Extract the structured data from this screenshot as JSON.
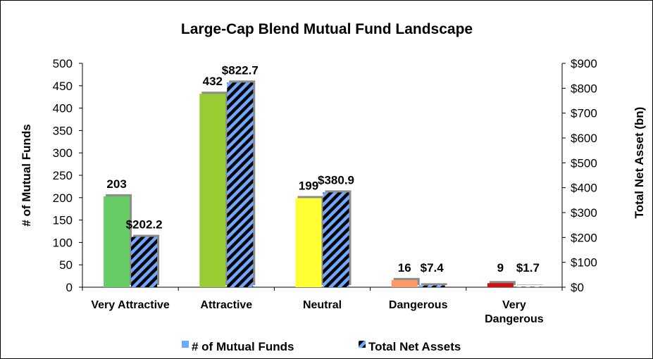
{
  "chart_data": {
    "type": "bar",
    "title": "Large-Cap Blend Mutual Fund Landscape",
    "categories": [
      "Very Attractive",
      "Attractive",
      "Neutral",
      "Dangerous",
      "Very Dangerous"
    ],
    "series": [
      {
        "name": "# of Mutual Funds",
        "axis": "left",
        "values": [
          203,
          432,
          199,
          16,
          9
        ],
        "labels": [
          "203",
          "432",
          "199",
          "16",
          "9"
        ],
        "colors": [
          "#66cc66",
          "#99cc33",
          "#ffff33",
          "#ff9966",
          "#cc1111"
        ]
      },
      {
        "name": "Total Net Assets",
        "axis": "right",
        "values": [
          202.2,
          822.7,
          380.9,
          7.4,
          1.7
        ],
        "labels": [
          "$202.2",
          "$822.7",
          "$380.9",
          "$7.4",
          "$1.7"
        ],
        "pattern": "diagonal stripes",
        "colors": [
          "#6fa8ff",
          "#000000"
        ]
      }
    ],
    "ylabel": "# of Mutual Funds",
    "ylim": [
      0,
      500
    ],
    "yticks": [
      "0",
      "50",
      "100",
      "150",
      "200",
      "250",
      "300",
      "350",
      "400",
      "450",
      "500"
    ],
    "y2label": "Total Net Asset (bn)",
    "y2lim": [
      0,
      900
    ],
    "y2ticks": [
      "$0",
      "$100",
      "$200",
      "$300",
      "$400",
      "$500",
      "$600",
      "$700",
      "$800",
      "$900"
    ],
    "grid": false,
    "legend_position": "bottom"
  }
}
